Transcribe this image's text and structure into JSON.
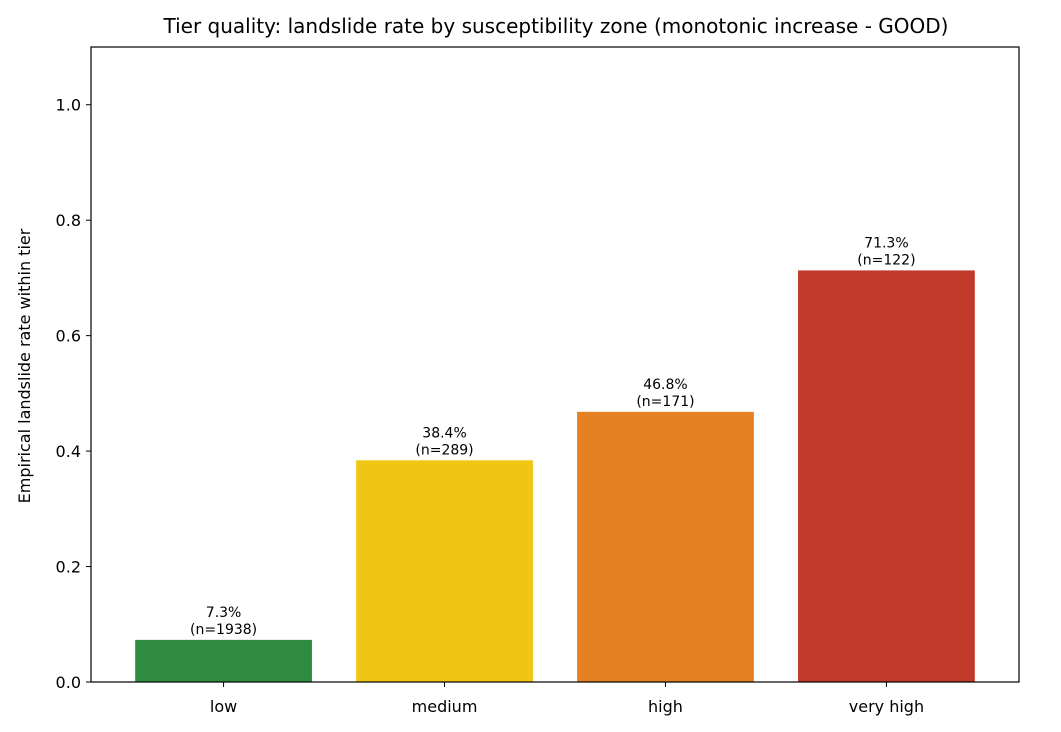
{
  "chart_data": {
    "type": "bar",
    "title": "Tier quality: landslide rate by susceptibility zone (monotonic increase - GOOD)",
    "xlabel": "",
    "ylabel": "Empirical landslide rate within tier",
    "categories": [
      "low",
      "medium",
      "high",
      "very high"
    ],
    "values": [
      0.073,
      0.384,
      0.468,
      0.713
    ],
    "counts": [
      1938,
      289,
      171,
      122
    ],
    "data_labels": [
      [
        "7.3%",
        "(n=1938)"
      ],
      [
        "38.4%",
        "(n=289)"
      ],
      [
        "46.8%",
        "(n=171)"
      ],
      [
        "71.3%",
        "(n=122)"
      ]
    ],
    "colors": [
      "#2e8b40",
      "#f0c514",
      "#e58023",
      "#c0392b"
    ],
    "ylim": [
      0,
      1.1
    ],
    "yticks": [
      0.0,
      0.2,
      0.4,
      0.6,
      0.8,
      1.0
    ],
    "ytick_labels": [
      "0.0",
      "0.2",
      "0.4",
      "0.6",
      "0.8",
      "1.0"
    ],
    "grid": false,
    "legend": "none"
  }
}
